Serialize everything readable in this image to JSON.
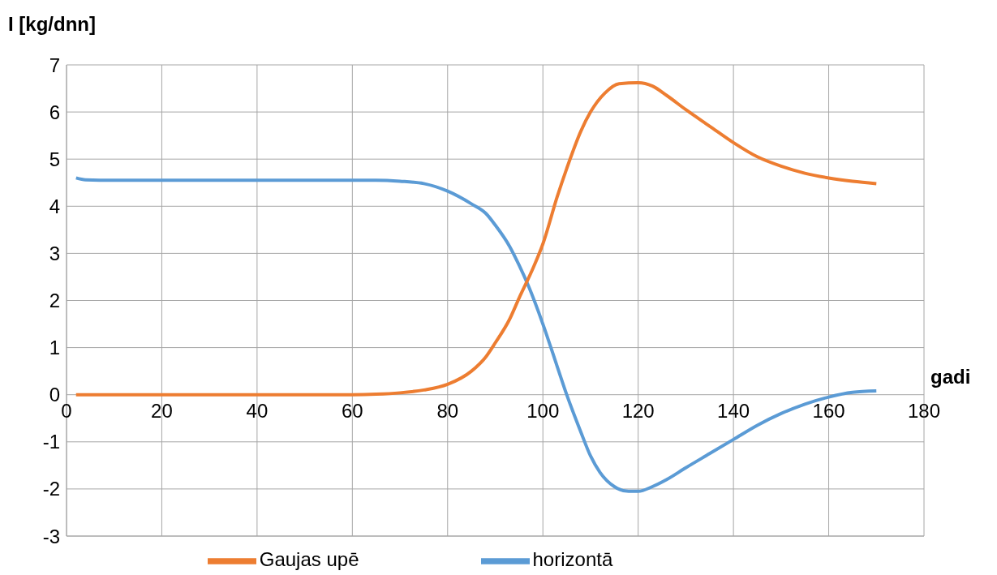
{
  "chart_data": {
    "type": "line",
    "xlabel": "gadi",
    "ylabel": "I [kg/dnn]",
    "xlim": [
      0,
      180
    ],
    "xticks": [
      0,
      20,
      40,
      60,
      80,
      100,
      120,
      140,
      160,
      180
    ],
    "ylim": [
      -3,
      7
    ],
    "yticks": [
      -3,
      -2,
      -1,
      0,
      1,
      2,
      3,
      4,
      5,
      6,
      7
    ],
    "grid": true,
    "legend": "bottom",
    "marker": "none",
    "line_style": "solid",
    "series": [
      {
        "name": "horizontā",
        "color": "#5b9bd5",
        "x": [
          2,
          4,
          10,
          20,
          30,
          40,
          50,
          60,
          65,
          70,
          75,
          80,
          85,
          88,
          90,
          93,
          95,
          97,
          100,
          103,
          105,
          108,
          110,
          112,
          115,
          118,
          120,
          123,
          126,
          130,
          135,
          140,
          145,
          150,
          155,
          160,
          165,
          170
        ],
        "values": [
          4.6,
          4.56,
          4.55,
          4.55,
          4.55,
          4.55,
          4.55,
          4.55,
          4.55,
          4.53,
          4.48,
          4.32,
          4.05,
          3.85,
          3.6,
          3.15,
          2.75,
          2.3,
          1.5,
          0.6,
          0.0,
          -0.8,
          -1.3,
          -1.65,
          -1.95,
          -2.05,
          -2.05,
          -1.95,
          -1.8,
          -1.55,
          -1.25,
          -0.95,
          -0.65,
          -0.4,
          -0.2,
          -0.05,
          0.05,
          0.08
        ]
      },
      {
        "name": "Gaujas upē",
        "color": "#ed7d31",
        "x": [
          2,
          20,
          40,
          60,
          65,
          70,
          75,
          80,
          85,
          88,
          90,
          93,
          95,
          98,
          100,
          103,
          105,
          108,
          110,
          113,
          116,
          120,
          123,
          126,
          130,
          135,
          140,
          145,
          150,
          155,
          160,
          165,
          170
        ],
        "values": [
          0,
          0,
          0,
          0,
          0.01,
          0.04,
          0.1,
          0.22,
          0.5,
          0.8,
          1.1,
          1.6,
          2.05,
          2.7,
          3.2,
          4.2,
          4.8,
          5.6,
          6.0,
          6.4,
          6.6,
          6.62,
          6.55,
          6.35,
          6.05,
          5.7,
          5.35,
          5.05,
          4.85,
          4.7,
          4.6,
          4.53,
          4.48
        ]
      }
    ]
  }
}
